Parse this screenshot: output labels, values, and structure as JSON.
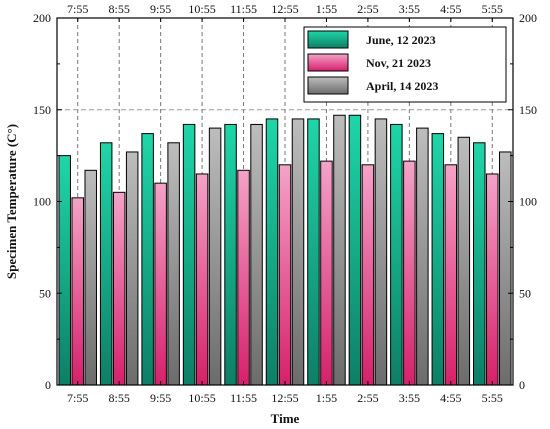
{
  "chart_data": {
    "type": "bar",
    "title": "",
    "xlabel": "Time",
    "ylabel": "Specimen Temperature (C°)",
    "categories": [
      "7:55",
      "8:55",
      "9:55",
      "10:55",
      "11:55",
      "12:55",
      "1:55",
      "2:55",
      "3:55",
      "4:55",
      "5:55"
    ],
    "ylim": [
      0,
      200
    ],
    "yticks": [
      "0",
      "50",
      "100",
      "150",
      "200"
    ],
    "grid": "dashed vertical lines at each category; dashed horizontal line at 150",
    "legend_position": "top-right",
    "series": [
      {
        "name": "June, 12 2023",
        "values": [
          125,
          132,
          137,
          142,
          142,
          145,
          145,
          147,
          142,
          137,
          132
        ],
        "color_top": "#1fd6a8",
        "color_bottom": "#0d7f66"
      },
      {
        "name": "Nov, 21 2023",
        "values": [
          102,
          105,
          110,
          115,
          117,
          120,
          122,
          120,
          122,
          120,
          115
        ],
        "color_top": "#f4a3c8",
        "color_bottom": "#d6206a"
      },
      {
        "name": "April, 14 2023",
        "values": [
          117,
          127,
          132,
          140,
          142,
          145,
          147,
          145,
          140,
          135,
          127
        ],
        "color_top": "#bdbdbd",
        "color_bottom": "#6c6c6c"
      }
    ]
  }
}
